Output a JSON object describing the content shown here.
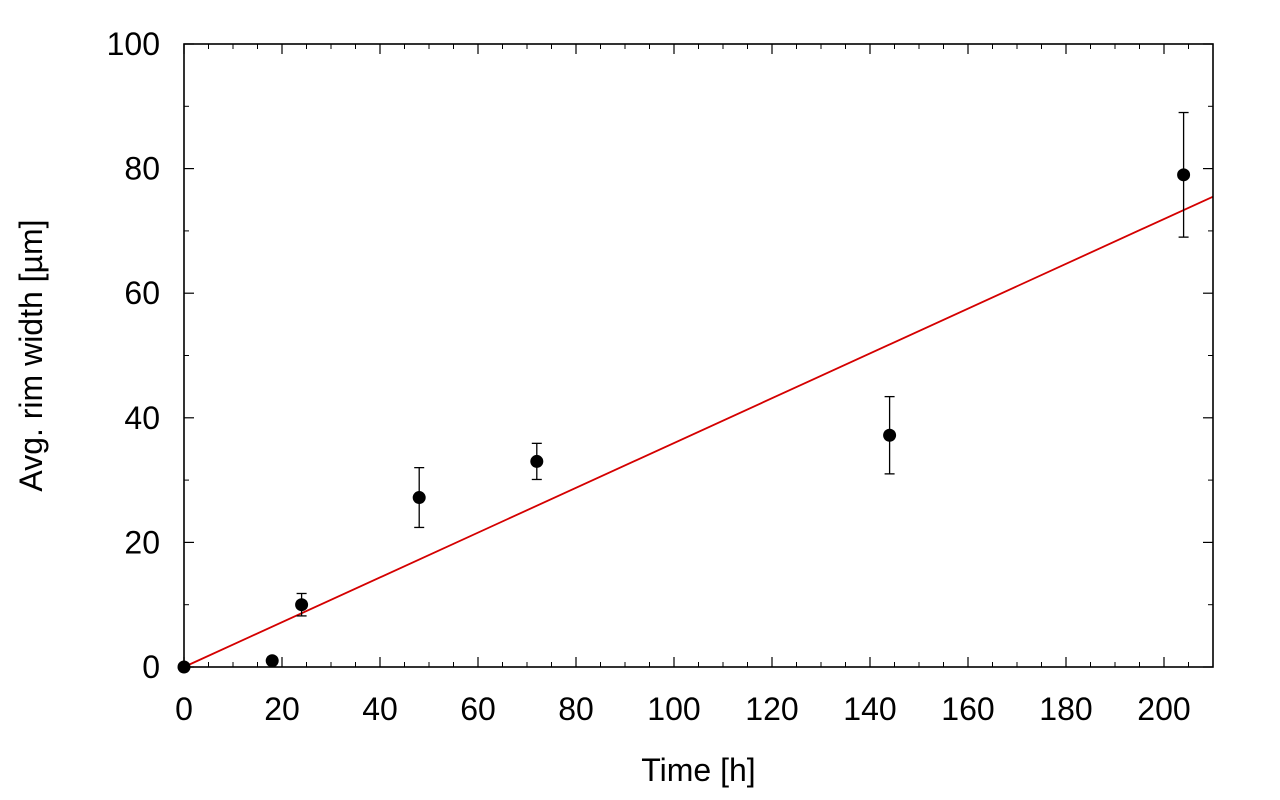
{
  "chart_data": {
    "type": "scatter",
    "title": "",
    "xlabel": "Time [h]",
    "ylabel": "Avg. rim width [µm]",
    "xlim": [
      0,
      210
    ],
    "ylim": [
      0,
      100
    ],
    "xticks": [
      0,
      20,
      40,
      60,
      80,
      100,
      120,
      140,
      160,
      180,
      200
    ],
    "yticks": [
      0,
      20,
      40,
      60,
      80,
      100
    ],
    "grid": false,
    "legend": "none",
    "series": [
      {
        "kind": "points-with-error-bars",
        "color": "#000000",
        "points": [
          {
            "x": 0,
            "y": 0,
            "err": 0
          },
          {
            "x": 18,
            "y": 1,
            "err": 0
          },
          {
            "x": 24,
            "y": 10,
            "err": 1.8
          },
          {
            "x": 48,
            "y": 27.2,
            "err": 4.8
          },
          {
            "x": 72,
            "y": 33,
            "err": 2.9
          },
          {
            "x": 144,
            "y": 37.2,
            "err": 6.2
          },
          {
            "x": 204,
            "y": 79,
            "err": 10
          }
        ]
      },
      {
        "kind": "fit-line",
        "color": "#d40000",
        "x": [
          0,
          210
        ],
        "y": [
          0,
          75.5
        ]
      }
    ]
  }
}
